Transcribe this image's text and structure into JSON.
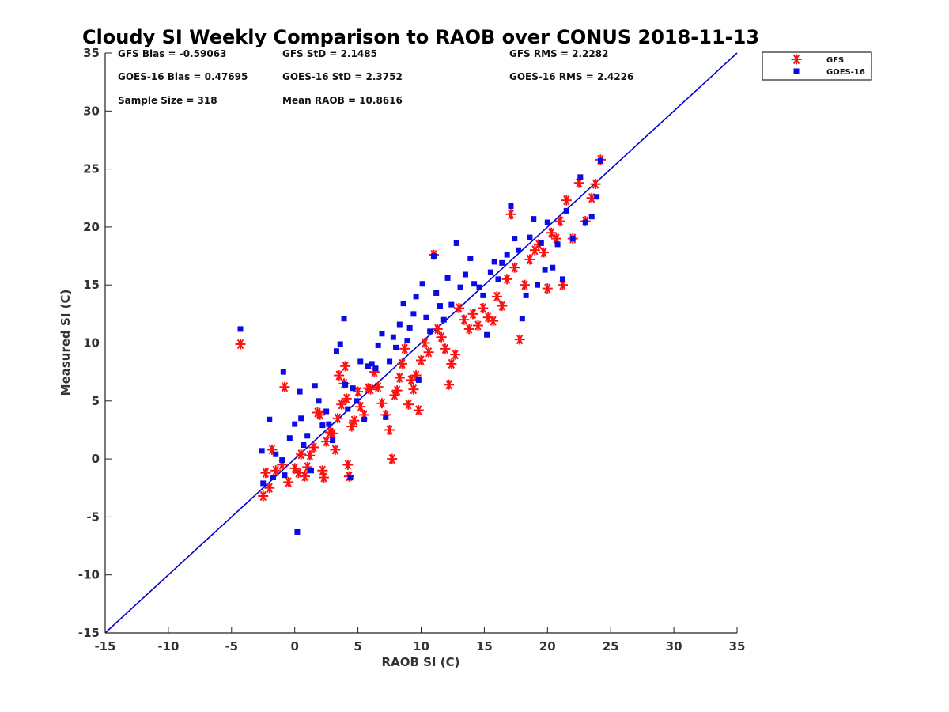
{
  "chart_data": {
    "type": "scatter",
    "title": "Cloudy SI Weekly Comparison to RAOB over CONUS 2018-11-13",
    "xlabel": "RAOB SI (C)",
    "ylabel": "Measured SI (C)",
    "xlim": [
      -15,
      35
    ],
    "ylim": [
      -15,
      35
    ],
    "xticks": [
      "-15",
      "-10",
      "-5",
      "0",
      "5",
      "10",
      "15",
      "20",
      "25",
      "30",
      "35"
    ],
    "yticks": [
      "35",
      "30",
      "25",
      "20",
      "15",
      "10",
      "5",
      "0",
      "-5",
      "-10",
      "-15"
    ],
    "grid": false,
    "legend_position": "top-right (outside plot)",
    "reference_line": {
      "from": [
        -15,
        -15
      ],
      "to": [
        35,
        35
      ],
      "color": "#0000cc"
    },
    "annotations": [
      "GFS Bias = -0.59063",
      "GFS StD = 2.1485",
      "GFS RMS = 2.2282",
      "GOES-16 Bias = 0.47695",
      "GOES-16 StD = 2.3752",
      "GOES-16 RMS = 2.4226",
      "Sample Size = 318",
      "Mean RAOB = 10.8616"
    ],
    "series": [
      {
        "name": "GFS",
        "marker": "asterisk",
        "color": "#ff1010",
        "points": [
          [
            -4.3,
            9.9
          ],
          [
            -0.8,
            6.2
          ],
          [
            -2.5,
            -3.2
          ],
          [
            -2.3,
            -1.2
          ],
          [
            -2.0,
            -2.5
          ],
          [
            -1.8,
            0.8
          ],
          [
            -1.5,
            -1.0
          ],
          [
            -1.0,
            -0.5
          ],
          [
            -0.5,
            -2.0
          ],
          [
            0.0,
            -0.8
          ],
          [
            0.3,
            -1.2
          ],
          [
            0.5,
            0.4
          ],
          [
            0.8,
            -1.5
          ],
          [
            1.0,
            -0.7
          ],
          [
            1.2,
            0.3
          ],
          [
            1.5,
            1.0
          ],
          [
            1.8,
            4.0
          ],
          [
            2.0,
            3.8
          ],
          [
            2.2,
            -1.0
          ],
          [
            2.3,
            -1.6
          ],
          [
            2.5,
            1.5
          ],
          [
            2.8,
            2.3
          ],
          [
            3.0,
            2.2
          ],
          [
            3.2,
            0.8
          ],
          [
            3.4,
            3.5
          ],
          [
            3.5,
            7.2
          ],
          [
            3.7,
            4.7
          ],
          [
            3.9,
            6.5
          ],
          [
            4.0,
            8.0
          ],
          [
            4.1,
            5.2
          ],
          [
            4.2,
            -0.5
          ],
          [
            4.3,
            -1.5
          ],
          [
            4.5,
            2.8
          ],
          [
            4.7,
            3.3
          ],
          [
            5.0,
            5.8
          ],
          [
            5.2,
            4.5
          ],
          [
            5.5,
            3.8
          ],
          [
            5.8,
            6.1
          ],
          [
            6.0,
            6.0
          ],
          [
            6.3,
            7.5
          ],
          [
            6.6,
            6.2
          ],
          [
            6.9,
            4.8
          ],
          [
            7.2,
            3.8
          ],
          [
            7.5,
            2.5
          ],
          [
            7.7,
            0.0
          ],
          [
            7.9,
            5.5
          ],
          [
            8.1,
            5.9
          ],
          [
            8.3,
            7.0
          ],
          [
            8.5,
            8.2
          ],
          [
            8.7,
            9.5
          ],
          [
            9.0,
            4.7
          ],
          [
            9.2,
            6.8
          ],
          [
            9.4,
            6.0
          ],
          [
            9.6,
            7.2
          ],
          [
            9.8,
            4.2
          ],
          [
            10.0,
            8.5
          ],
          [
            10.3,
            10.0
          ],
          [
            10.6,
            9.2
          ],
          [
            11.0,
            17.6
          ],
          [
            11.3,
            11.2
          ],
          [
            11.6,
            10.5
          ],
          [
            11.9,
            9.5
          ],
          [
            12.2,
            6.4
          ],
          [
            12.4,
            8.2
          ],
          [
            12.7,
            9.0
          ],
          [
            13.0,
            13.0
          ],
          [
            13.4,
            12.0
          ],
          [
            13.8,
            11.2
          ],
          [
            14.1,
            12.5
          ],
          [
            14.5,
            11.5
          ],
          [
            14.9,
            13.0
          ],
          [
            15.3,
            12.2
          ],
          [
            15.7,
            11.9
          ],
          [
            16.0,
            14.0
          ],
          [
            16.4,
            13.2
          ],
          [
            16.8,
            15.5
          ],
          [
            17.1,
            21.1
          ],
          [
            17.4,
            16.5
          ],
          [
            17.8,
            10.3
          ],
          [
            18.2,
            15.0
          ],
          [
            18.6,
            17.2
          ],
          [
            19.0,
            18.0
          ],
          [
            19.3,
            18.5
          ],
          [
            19.7,
            17.8
          ],
          [
            20.0,
            14.7
          ],
          [
            20.3,
            19.5
          ],
          [
            20.7,
            19.0
          ],
          [
            21.0,
            20.5
          ],
          [
            21.2,
            15.0
          ],
          [
            21.5,
            22.3
          ],
          [
            22.0,
            19.0
          ],
          [
            22.5,
            23.8
          ],
          [
            23.0,
            20.5
          ],
          [
            23.5,
            22.5
          ],
          [
            23.8,
            23.7
          ],
          [
            24.2,
            25.8
          ]
        ]
      },
      {
        "name": "GOES-16",
        "marker": "square",
        "color": "#0a0ae6",
        "points": [
          [
            -4.3,
            11.2
          ],
          [
            -0.9,
            7.5
          ],
          [
            -2.6,
            0.7
          ],
          [
            -2.5,
            -2.1
          ],
          [
            -2.0,
            3.4
          ],
          [
            -1.7,
            -1.6
          ],
          [
            -1.5,
            0.4
          ],
          [
            -1.0,
            -0.1
          ],
          [
            -0.8,
            -1.4
          ],
          [
            -0.4,
            1.8
          ],
          [
            0.0,
            3.0
          ],
          [
            0.2,
            -6.3
          ],
          [
            0.4,
            5.8
          ],
          [
            0.5,
            3.5
          ],
          [
            0.7,
            1.2
          ],
          [
            1.0,
            2.0
          ],
          [
            1.3,
            -1.0
          ],
          [
            1.6,
            6.3
          ],
          [
            1.9,
            5.0
          ],
          [
            2.2,
            2.9
          ],
          [
            2.5,
            4.1
          ],
          [
            2.7,
            3.0
          ],
          [
            3.0,
            1.6
          ],
          [
            3.3,
            9.3
          ],
          [
            3.6,
            9.9
          ],
          [
            3.9,
            12.1
          ],
          [
            4.0,
            6.4
          ],
          [
            4.2,
            4.3
          ],
          [
            4.4,
            -1.6
          ],
          [
            4.6,
            6.1
          ],
          [
            4.9,
            5.0
          ],
          [
            5.2,
            8.4
          ],
          [
            5.5,
            3.4
          ],
          [
            5.8,
            8.0
          ],
          [
            6.1,
            8.2
          ],
          [
            6.4,
            7.8
          ],
          [
            6.6,
            9.8
          ],
          [
            6.9,
            10.8
          ],
          [
            7.2,
            3.6
          ],
          [
            7.5,
            8.4
          ],
          [
            7.8,
            10.5
          ],
          [
            8.0,
            9.6
          ],
          [
            8.3,
            11.6
          ],
          [
            8.6,
            13.4
          ],
          [
            8.9,
            10.2
          ],
          [
            9.1,
            11.3
          ],
          [
            9.4,
            12.5
          ],
          [
            9.6,
            14.0
          ],
          [
            9.8,
            6.8
          ],
          [
            10.1,
            15.1
          ],
          [
            10.4,
            12.2
          ],
          [
            10.7,
            11.0
          ],
          [
            11.0,
            17.5
          ],
          [
            11.2,
            14.3
          ],
          [
            11.5,
            13.2
          ],
          [
            11.8,
            12.0
          ],
          [
            12.1,
            15.6
          ],
          [
            12.4,
            13.3
          ],
          [
            12.8,
            18.6
          ],
          [
            13.1,
            14.8
          ],
          [
            13.5,
            15.9
          ],
          [
            13.9,
            17.3
          ],
          [
            14.2,
            15.1
          ],
          [
            14.6,
            14.8
          ],
          [
            14.9,
            14.1
          ],
          [
            15.2,
            10.7
          ],
          [
            15.5,
            16.1
          ],
          [
            15.8,
            17.0
          ],
          [
            16.1,
            15.5
          ],
          [
            16.4,
            16.9
          ],
          [
            16.8,
            17.6
          ],
          [
            17.1,
            21.8
          ],
          [
            17.4,
            19.0
          ],
          [
            17.7,
            18.0
          ],
          [
            18.0,
            12.1
          ],
          [
            18.3,
            14.1
          ],
          [
            18.6,
            19.1
          ],
          [
            18.9,
            20.7
          ],
          [
            19.2,
            15.0
          ],
          [
            19.5,
            18.6
          ],
          [
            19.8,
            16.3
          ],
          [
            20.0,
            20.4
          ],
          [
            20.4,
            16.5
          ],
          [
            20.8,
            18.5
          ],
          [
            21.2,
            15.5
          ],
          [
            21.5,
            21.4
          ],
          [
            22.0,
            19.0
          ],
          [
            22.6,
            24.3
          ],
          [
            23.0,
            20.4
          ],
          [
            23.5,
            20.9
          ],
          [
            23.9,
            22.6
          ],
          [
            24.2,
            25.7
          ]
        ]
      }
    ]
  }
}
